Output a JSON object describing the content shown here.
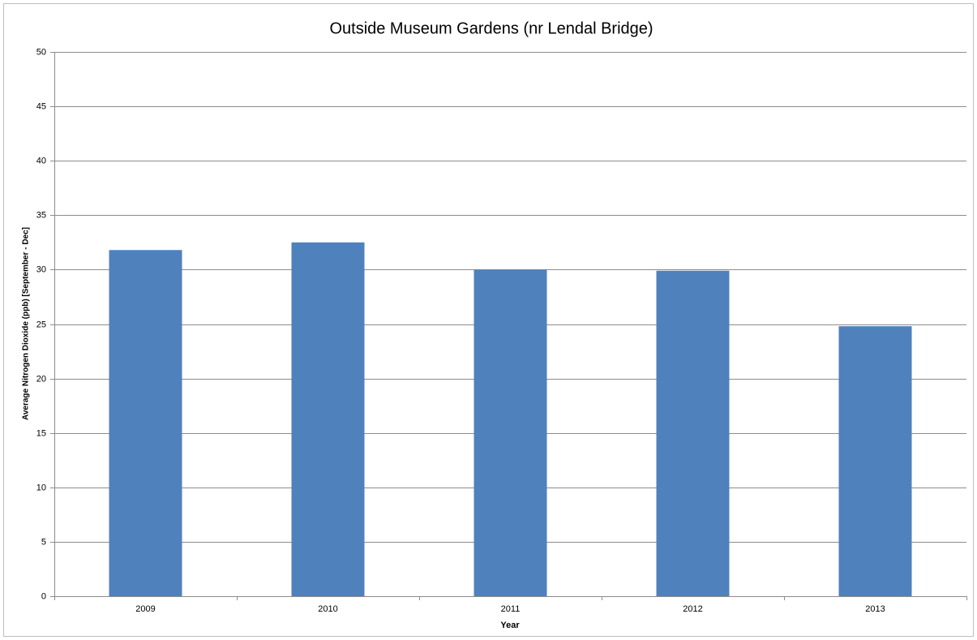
{
  "chart_data": {
    "type": "bar",
    "title": "Outside Museum Gardens (nr Lendal Bridge)",
    "x_label": "Year",
    "y_label": "Average Nitrogen Dioxide (ppb) [September - Dec]",
    "categories": [
      "2009",
      "2010",
      "2011",
      "2012",
      "2013"
    ],
    "values": [
      31.8,
      32.5,
      30.0,
      29.9,
      24.8
    ],
    "color": "#4f81bd",
    "ylim": [
      0,
      50
    ],
    "yticks": [
      0,
      5,
      10,
      15,
      20,
      25,
      30,
      35,
      40,
      45,
      50
    ],
    "grid": true
  }
}
